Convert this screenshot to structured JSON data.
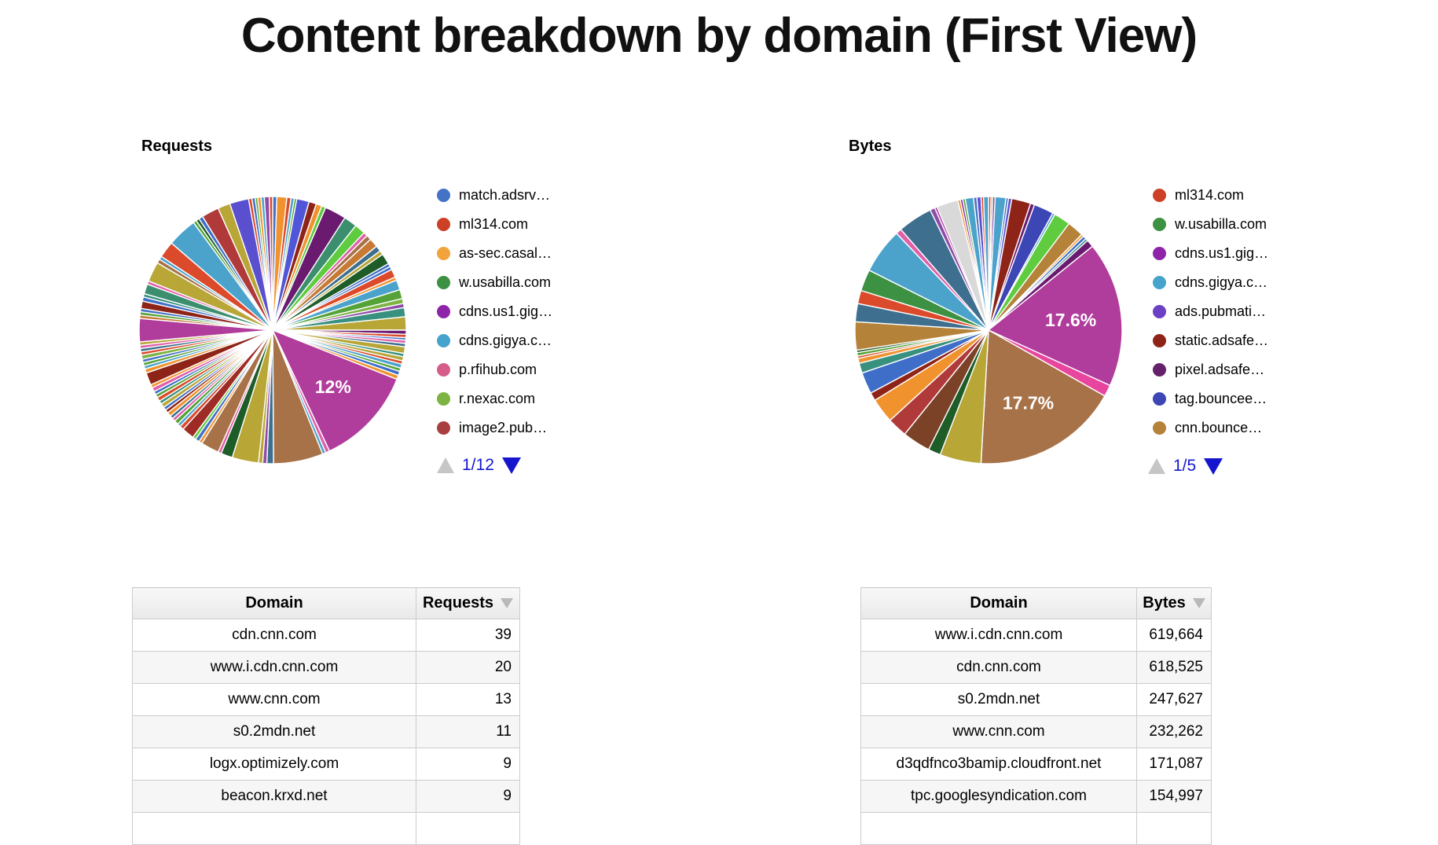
{
  "title": "Content breakdown by domain (First View)",
  "charts": [
    {
      "heading": "Requests",
      "pager": {
        "current": "1/12",
        "up_icon": "up-triangle",
        "down_icon": "down-triangle"
      }
    },
    {
      "heading": "Bytes",
      "pager": {
        "current": "1/5",
        "up_icon": "up-triangle",
        "down_icon": "down-triangle"
      }
    }
  ],
  "colors": {
    "pager_link": "#1515ce",
    "pager_disabled": "#c6c6c6",
    "big_magenta_slice": "#B03C9C",
    "big_brown_slice": "#A87248"
  },
  "chart_data": [
    {
      "type": "pie",
      "title": "Requests",
      "legend_position": "right",
      "pager": "1/12",
      "legend": [
        {
          "label": "match.adsrv…",
          "color": "#4472C4"
        },
        {
          "label": "ml314.com",
          "color": "#CC4125"
        },
        {
          "label": "as-sec.casal…",
          "color": "#F2A33C"
        },
        {
          "label": "w.usabilla.com",
          "color": "#3D9142"
        },
        {
          "label": "cdns.us1.gig…",
          "color": "#8E24AA"
        },
        {
          "label": "cdns.gigya.c…",
          "color": "#45A3CC"
        },
        {
          "label": "p.rfihub.com",
          "color": "#D65D8A"
        },
        {
          "label": "r.nexac.com",
          "color": "#7CB342"
        },
        {
          "label": "image2.pub…",
          "color": "#A93E3E"
        }
      ],
      "slices": [
        [
          0.5,
          "#4472C4"
        ],
        [
          1.2,
          "#F0932F"
        ],
        [
          0.5,
          "#DB4A2B"
        ],
        [
          0.4,
          "#4BA3CC"
        ],
        [
          0.3,
          "#55A338"
        ],
        [
          1.5,
          "#5156D8"
        ],
        [
          0.9,
          "#8E2418"
        ],
        [
          0.7,
          "#F0932F"
        ],
        [
          0.5,
          "#5ECC3E"
        ],
        [
          2.6,
          "#6A1B70"
        ],
        [
          1.6,
          "#3C8F6E"
        ],
        [
          1.3,
          "#5ECC3E"
        ],
        [
          0.5,
          "#E060A8"
        ],
        [
          0.6,
          "#A87248"
        ],
        [
          1.1,
          "#C87A35"
        ],
        [
          0.7,
          "#3E6F8E"
        ],
        [
          0.5,
          "#B8A637"
        ],
        [
          1.3,
          "#1E5C28"
        ],
        [
          0.4,
          "#4472C4"
        ],
        [
          0.4,
          "#3E6EC8"
        ],
        [
          1.0,
          "#DB4A2B"
        ],
        [
          0.4,
          "#F0932F"
        ],
        [
          1.2,
          "#4BA3CC"
        ],
        [
          1.1,
          "#55A338"
        ],
        [
          0.6,
          "#7CB342"
        ],
        [
          0.5,
          "#8E4CA8"
        ],
        [
          1.1,
          "#38917F"
        ],
        [
          1.6,
          "#B8A637"
        ],
        [
          0.5,
          "#6A1B70"
        ],
        [
          0.4,
          "#DB4A2B"
        ],
        [
          0.3,
          "#4472C4"
        ],
        [
          0.4,
          "#E060A8"
        ],
        [
          0.4,
          "#3E6F8E"
        ],
        [
          0.8,
          "#B8A637"
        ],
        [
          0.4,
          "#38917F"
        ],
        [
          0.5,
          "#B8A637"
        ],
        [
          0.4,
          "#DB4A2B"
        ],
        [
          0.5,
          "#4BA3CC"
        ],
        [
          0.4,
          "#55A338"
        ],
        [
          0.5,
          "#3E6EC8"
        ],
        [
          0.5,
          "#F0932F"
        ],
        [
          12.0,
          "#B03C9C",
          "12%"
        ],
        [
          0.5,
          "#E060A8"
        ],
        [
          0.4,
          "#4BA3CC"
        ],
        [
          6.0,
          "#A87248"
        ],
        [
          0.8,
          "#3E6F8E"
        ],
        [
          0.5,
          "#8E4CA8"
        ],
        [
          0.5,
          "#B8A637"
        ],
        [
          3.2,
          "#B8A637"
        ],
        [
          1.4,
          "#1E5C28"
        ],
        [
          0.4,
          "#E060A8"
        ],
        [
          2.2,
          "#A87248"
        ],
        [
          0.4,
          "#F0932F"
        ],
        [
          0.5,
          "#4472C4"
        ],
        [
          0.4,
          "#5ECC3E"
        ],
        [
          1.5,
          "#9E2B25"
        ],
        [
          0.5,
          "#DB4A2B"
        ],
        [
          0.4,
          "#4BA3CC"
        ],
        [
          0.5,
          "#55A338"
        ],
        [
          0.4,
          "#E060A8"
        ],
        [
          0.4,
          "#3E6F8E"
        ],
        [
          0.5,
          "#F0932F"
        ],
        [
          0.4,
          "#8E2418"
        ],
        [
          0.4,
          "#4472C4"
        ],
        [
          0.5,
          "#B8A637"
        ],
        [
          0.4,
          "#38917F"
        ],
        [
          0.5,
          "#DB4A2B"
        ],
        [
          0.4,
          "#55A338"
        ],
        [
          0.4,
          "#3E6EC8"
        ],
        [
          0.5,
          "#E060A8"
        ],
        [
          0.4,
          "#F0932F"
        ],
        [
          1.5,
          "#8E2418"
        ],
        [
          0.5,
          "#F0932F"
        ],
        [
          0.4,
          "#4BA3CC"
        ],
        [
          0.4,
          "#55A338"
        ],
        [
          0.4,
          "#4472C4"
        ],
        [
          0.5,
          "#7CB342"
        ],
        [
          0.4,
          "#DB4A2B"
        ],
        [
          0.4,
          "#3E6F8E"
        ],
        [
          0.4,
          "#E060A8"
        ],
        [
          0.4,
          "#B8A637"
        ],
        [
          2.8,
          "#B03C9C"
        ],
        [
          0.4,
          "#C87A35"
        ],
        [
          0.4,
          "#55A338"
        ],
        [
          0.4,
          "#4472C4"
        ],
        [
          0.9,
          "#8E2418"
        ],
        [
          0.5,
          "#3E6EC8"
        ],
        [
          0.4,
          "#38917F"
        ],
        [
          1.2,
          "#3C8F6E"
        ],
        [
          0.4,
          "#E060A8"
        ],
        [
          2.4,
          "#B8A637"
        ],
        [
          0.5,
          "#A87248"
        ],
        [
          0.4,
          "#4BA3CC"
        ],
        [
          2.0,
          "#DB4A2B"
        ],
        [
          3.6,
          "#4BA3CC"
        ],
        [
          0.4,
          "#55A338"
        ],
        [
          0.4,
          "#1E5C28"
        ],
        [
          0.5,
          "#3E6EC8"
        ],
        [
          2.1,
          "#B03A3A"
        ],
        [
          1.5,
          "#B8A637"
        ],
        [
          2.3,
          "#5A4FCF"
        ],
        [
          0.4,
          "#DB4A2B"
        ],
        [
          0.4,
          "#4472C4"
        ],
        [
          0.3,
          "#55A338"
        ],
        [
          0.4,
          "#F0932F"
        ],
        [
          0.4,
          "#4BA3CC"
        ],
        [
          0.6,
          "#8E4CA8"
        ],
        [
          0.4,
          "#DB4A2B"
        ]
      ]
    },
    {
      "type": "pie",
      "title": "Bytes",
      "legend_position": "right",
      "pager": "1/5",
      "legend": [
        {
          "label": "ml314.com",
          "color": "#CC4125"
        },
        {
          "label": "w.usabilla.com",
          "color": "#3D9142"
        },
        {
          "label": "cdns.us1.gig…",
          "color": "#8E24AA"
        },
        {
          "label": "cdns.gigya.c…",
          "color": "#45A3CC"
        },
        {
          "label": "ads.pubmati…",
          "color": "#6B40C4"
        },
        {
          "label": "static.adsafe…",
          "color": "#8E2418"
        },
        {
          "label": "pixel.adsafe…",
          "color": "#65216B"
        },
        {
          "label": "tag.bouncee…",
          "color": "#3D46B5"
        },
        {
          "label": "cnn.bounce…",
          "color": "#B5823A"
        }
      ],
      "slices": [
        [
          0.3,
          "#DB4A2B"
        ],
        [
          0.2,
          "#55A338"
        ],
        [
          0.3,
          "#8E4CA8"
        ],
        [
          1.3,
          "#4BA3CC"
        ],
        [
          0.3,
          "#4472C4"
        ],
        [
          0.4,
          "#5A4FCF"
        ],
        [
          2.3,
          "#8E2418"
        ],
        [
          0.5,
          "#6A1B70"
        ],
        [
          2.4,
          "#3D46B5"
        ],
        [
          0.3,
          "#4BA3CC"
        ],
        [
          2.0,
          "#5ECC3E"
        ],
        [
          2.0,
          "#B5823A"
        ],
        [
          0.3,
          "#F0932F"
        ],
        [
          0.4,
          "#3E6EC8"
        ],
        [
          0.3,
          "#38917F"
        ],
        [
          0.9,
          "#6A1B70"
        ],
        [
          17.6,
          "#B03C9C",
          "17.6%"
        ],
        [
          1.4,
          "#E8459E"
        ],
        [
          17.7,
          "#A87248",
          "17.7%"
        ],
        [
          5.0,
          "#B8A637"
        ],
        [
          1.5,
          "#1E5C28"
        ],
        [
          3.4,
          "#7B4227"
        ],
        [
          2.4,
          "#B03A3A"
        ],
        [
          3.0,
          "#F0932F"
        ],
        [
          1.0,
          "#8E2418"
        ],
        [
          2.6,
          "#3E6EC8"
        ],
        [
          1.2,
          "#38917F"
        ],
        [
          0.6,
          "#F0932F"
        ],
        [
          0.3,
          "#DB4A2B"
        ],
        [
          0.4,
          "#55A338"
        ],
        [
          0.3,
          "#1E5C28"
        ],
        [
          3.4,
          "#B5823A"
        ],
        [
          2.2,
          "#3E6F8E"
        ],
        [
          1.6,
          "#DB4A2B"
        ],
        [
          2.6,
          "#3D9142"
        ],
        [
          5.5,
          "#4BA3CC"
        ],
        [
          0.7,
          "#E060A8"
        ],
        [
          4.2,
          "#3E6F8E"
        ],
        [
          0.6,
          "#8E4CA8"
        ],
        [
          0.3,
          "#B03C9C"
        ],
        [
          2.6,
          "#D9D9D9"
        ],
        [
          0.3,
          "#F0932F"
        ],
        [
          0.3,
          "#8E24AA"
        ],
        [
          0.3,
          "#55A338"
        ],
        [
          1.0,
          "#4BA3CC"
        ],
        [
          0.4,
          "#4472C4"
        ],
        [
          0.5,
          "#5A4FCF"
        ],
        [
          0.3,
          "#DB4A2B"
        ],
        [
          0.6,
          "#4BA3CC"
        ]
      ]
    }
  ],
  "tables": [
    {
      "headers": [
        "Domain",
        "Requests"
      ],
      "sorted_by": "Requests",
      "sort_direction": "desc",
      "rows": [
        [
          "cdn.cnn.com",
          "39"
        ],
        [
          "www.i.cdn.cnn.com",
          "20"
        ],
        [
          "www.cnn.com",
          "13"
        ],
        [
          "s0.2mdn.net",
          "11"
        ],
        [
          "logx.optimizely.com",
          "9"
        ],
        [
          "beacon.krxd.net",
          "9"
        ]
      ]
    },
    {
      "headers": [
        "Domain",
        "Bytes"
      ],
      "sorted_by": "Bytes",
      "sort_direction": "desc",
      "rows": [
        [
          "www.i.cdn.cnn.com",
          "619,664"
        ],
        [
          "cdn.cnn.com",
          "618,525"
        ],
        [
          "s0.2mdn.net",
          "247,627"
        ],
        [
          "www.cnn.com",
          "232,262"
        ],
        [
          "d3qdfnco3bamip.cloudfront.net",
          "171,087"
        ],
        [
          "tpc.googlesyndication.com",
          "154,997"
        ]
      ]
    }
  ]
}
